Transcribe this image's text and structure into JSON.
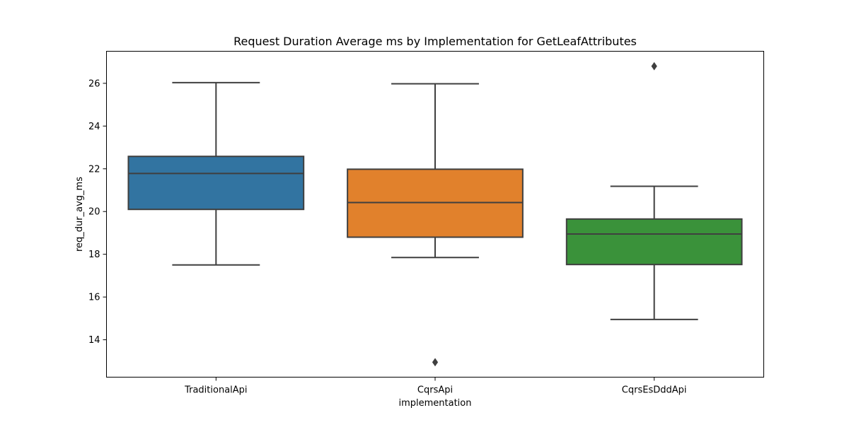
{
  "chart_data": {
    "type": "box",
    "title": "Request Duration Average ms by Implementation for GetLeafAttributes",
    "xlabel": "implementation",
    "ylabel": "req_dur_avg_ms",
    "categories": [
      "TraditionalApi",
      "CqrsApi",
      "CqrsEsDddApi"
    ],
    "boxes": [
      {
        "category": "TraditionalApi",
        "whisker_low": 17.5,
        "q1": 20.1,
        "median": 21.78,
        "q3": 22.58,
        "whisker_high": 26.03,
        "outliers": [],
        "color": "#3274a1"
      },
      {
        "category": "CqrsApi",
        "whisker_low": 17.85,
        "q1": 18.8,
        "median": 20.42,
        "q3": 21.98,
        "whisker_high": 25.98,
        "outliers": [
          12.95
        ],
        "color": "#e1812c"
      },
      {
        "category": "CqrsEsDddApi",
        "whisker_low": 14.95,
        "q1": 17.52,
        "median": 18.95,
        "q3": 19.65,
        "whisker_high": 21.18,
        "outliers": [
          26.8
        ],
        "color": "#3a923a"
      }
    ],
    "yticks": [
      14,
      16,
      18,
      20,
      22,
      24,
      26
    ],
    "ylim": [
      12.25,
      27.5
    ],
    "grid": false,
    "legend": "none"
  }
}
